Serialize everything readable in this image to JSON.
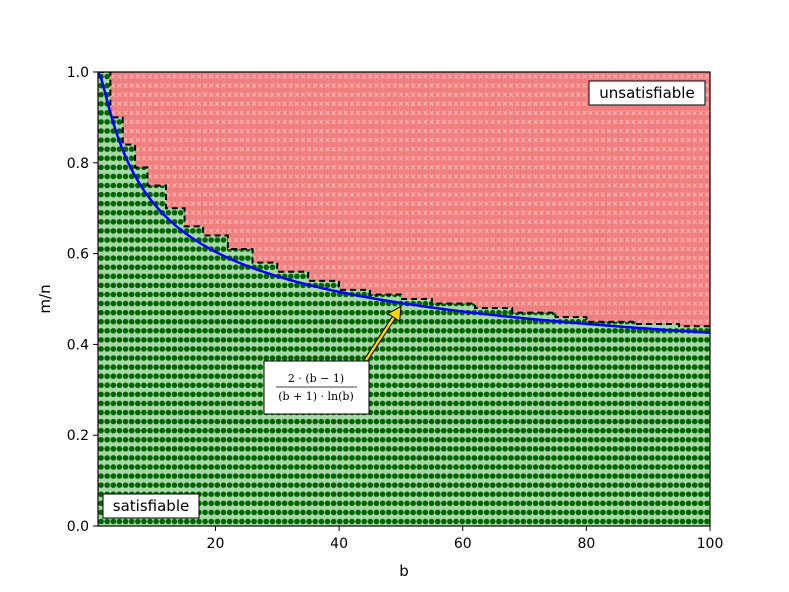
{
  "chart_data": {
    "type": "scatter",
    "xlabel": "b",
    "ylabel": "m/n",
    "xlim": [
      1,
      100
    ],
    "ylim": [
      0,
      1.0
    ],
    "x_ticks": [
      "20",
      "40",
      "60",
      "80",
      "100"
    ],
    "y_ticks": [
      "0.0",
      "0.2",
      "0.4",
      "0.6",
      "0.8",
      "1.0"
    ],
    "grid": false,
    "regions": [
      {
        "name": "satisfiable",
        "fill_color": "#a6d9a6",
        "marker_color": "#006400",
        "marker": "filled-circle",
        "position": "below boundary"
      },
      {
        "name": "unsatisfiable",
        "fill_color": "#f07f7f",
        "marker_color": "#ff0000",
        "marker": "x",
        "position": "above boundary"
      }
    ],
    "curves": [
      {
        "role": "theoretical-threshold",
        "formula_numerator": "2 · (b − 1)",
        "formula_denominator": "(b + 1) · ln(b)",
        "color": "#0000ff",
        "style": "solid",
        "sample_points": [
          [
            2,
            0.962
          ],
          [
            5,
            0.828
          ],
          [
            10,
            0.716
          ],
          [
            20,
            0.609
          ],
          [
            30,
            0.552
          ],
          [
            40,
            0.513
          ],
          [
            50,
            0.49
          ],
          [
            60,
            0.47
          ],
          [
            70,
            0.455
          ],
          [
            80,
            0.44
          ],
          [
            90,
            0.432
          ],
          [
            100,
            0.425
          ]
        ]
      },
      {
        "role": "empirical-boundary",
        "color": "#000000",
        "style": "dashed",
        "points": [
          [
            1,
            1.0
          ],
          [
            3,
            0.9
          ],
          [
            5,
            0.84
          ],
          [
            7,
            0.79
          ],
          [
            9,
            0.75
          ],
          [
            12,
            0.7
          ],
          [
            15,
            0.66
          ],
          [
            18,
            0.64
          ],
          [
            22,
            0.61
          ],
          [
            26,
            0.58
          ],
          [
            30,
            0.56
          ],
          [
            35,
            0.54
          ],
          [
            40,
            0.52
          ],
          [
            45,
            0.51
          ],
          [
            50,
            0.5
          ],
          [
            55,
            0.49
          ],
          [
            62,
            0.48
          ],
          [
            68,
            0.47
          ],
          [
            75,
            0.46
          ],
          [
            80,
            0.45
          ],
          [
            88,
            0.445
          ],
          [
            95,
            0.44
          ],
          [
            100,
            0.43
          ]
        ]
      }
    ],
    "annotations": [
      {
        "text_numerator": "2 · (b − 1)",
        "text_denominator": "(b + 1) · ln(b)",
        "points_to": [
          50,
          0.49
        ],
        "arrow_color": "#ffd700"
      }
    ],
    "labels": {
      "satisfiable": "satisfiable",
      "unsatisfiable": "unsatisfiable"
    }
  }
}
